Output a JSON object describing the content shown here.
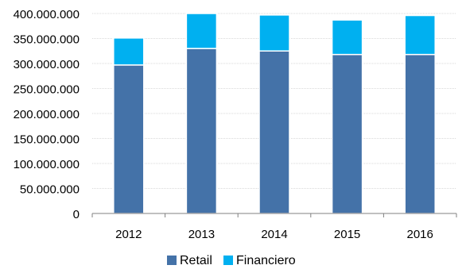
{
  "chart_data": {
    "type": "bar",
    "stacked": true,
    "categories": [
      "2012",
      "2013",
      "2014",
      "2015",
      "2016"
    ],
    "series": [
      {
        "name": "Retail",
        "color": "#4472A8",
        "values": [
          297000000,
          330000000,
          325000000,
          318000000,
          318000000
        ]
      },
      {
        "name": "Financiero",
        "color": "#00B0F0",
        "values": [
          54000000,
          70000000,
          72000000,
          69000000,
          78000000
        ]
      }
    ],
    "ylim": [
      0,
      400000000
    ],
    "yticks": [
      "0",
      "50.000.000",
      "100.000.000",
      "150.000.000",
      "200.000.000",
      "250.000.000",
      "300.000.000",
      "350.000.000",
      "400.000.000"
    ],
    "ytick_values": [
      0,
      50000000,
      100000000,
      150000000,
      200000000,
      250000000,
      300000000,
      350000000,
      400000000
    ],
    "grid": true,
    "legend": "bottom"
  }
}
